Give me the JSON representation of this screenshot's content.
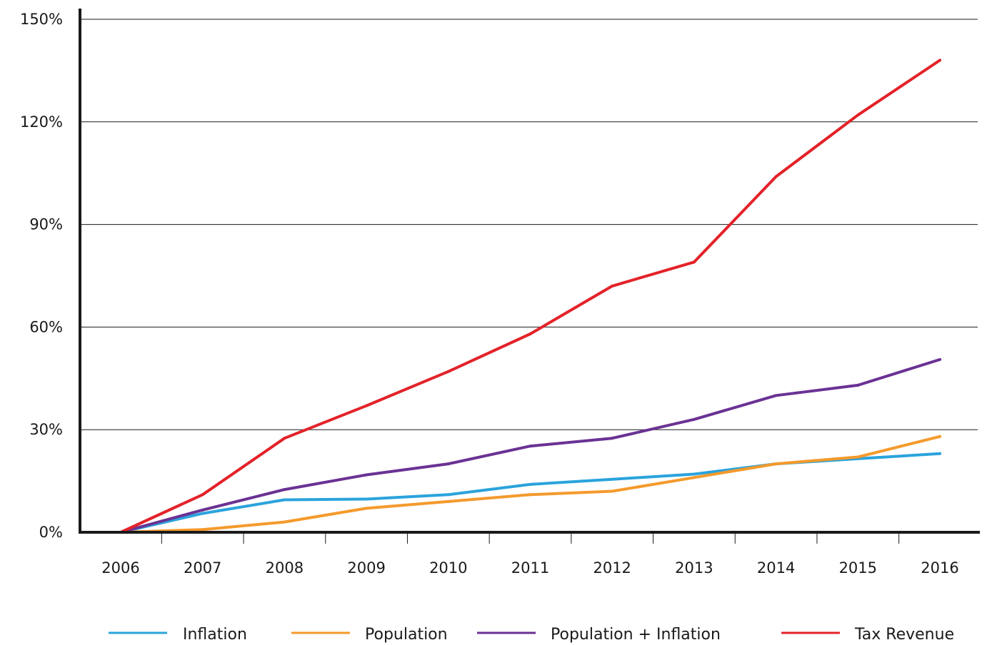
{
  "chart_data": {
    "type": "line",
    "title": "",
    "xlabel": "",
    "ylabel": "",
    "x": [
      "2006",
      "2007",
      "2008",
      "2009",
      "2010",
      "2011",
      "2012",
      "2013",
      "2014",
      "2015",
      "2016"
    ],
    "ylim": [
      0,
      150
    ],
    "y_ticks": [
      0,
      30,
      60,
      90,
      120,
      150
    ],
    "y_tick_labels": [
      "0%",
      "30%",
      "60%",
      "90%",
      "120%",
      "150%"
    ],
    "grid": true,
    "legend_position": "bottom",
    "series": [
      {
        "name": "Inflation",
        "color": "#2aa3dc",
        "values": [
          0,
          5.5,
          9.5,
          9.7,
          11,
          14,
          15.5,
          17,
          20,
          21.5,
          23
        ]
      },
      {
        "name": "Population",
        "color": "#f49a2c",
        "values": [
          0,
          0.8,
          3,
          7,
          9,
          11,
          12,
          16,
          20,
          22,
          28
        ]
      },
      {
        "name": "Population + Inflation",
        "color": "#6a3294",
        "values": [
          0,
          6.5,
          12.5,
          16.8,
          20,
          25.2,
          27.5,
          33,
          40,
          43,
          50.5
        ]
      },
      {
        "name": "Tax Revenue",
        "color": "#e32229",
        "values": [
          0,
          11,
          27.5,
          37,
          47,
          58,
          72,
          79,
          104,
          122,
          138
        ]
      }
    ]
  }
}
